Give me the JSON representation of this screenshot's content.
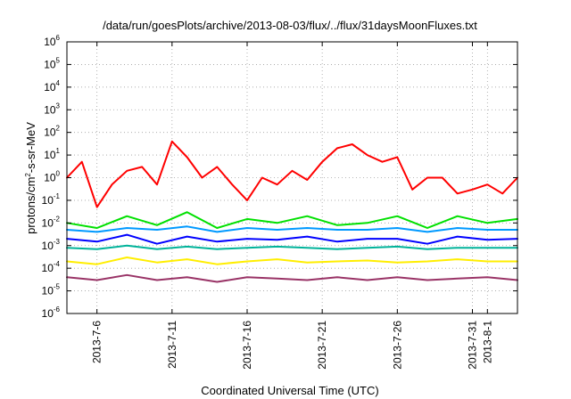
{
  "chart_data": {
    "type": "line",
    "title": "/data/run/goesPlots/archive/2013-08-03/flux/../flux/31daysMoonFluxes.txt",
    "xlabel": "Coordinated Universal Time (UTC)",
    "ylabel": {
      "base": "protons/cm",
      "sup": "2",
      "rest": "-s-sr-MeV"
    },
    "y_scale": "log",
    "ylim": [
      1e-06,
      1000000.0
    ],
    "xlim": [
      "2013-07-04",
      "2013-08-03"
    ],
    "grid": true,
    "y_ticks": [
      {
        "value": 1e-06,
        "base": "10",
        "exp": "-6"
      },
      {
        "value": 1e-05,
        "base": "10",
        "exp": "-5"
      },
      {
        "value": 0.0001,
        "base": "10",
        "exp": "-4"
      },
      {
        "value": 0.001,
        "base": "10",
        "exp": "-3"
      },
      {
        "value": 0.01,
        "base": "10",
        "exp": "-2"
      },
      {
        "value": 0.1,
        "base": "10",
        "exp": "-1"
      },
      {
        "value": 1.0,
        "base": "10",
        "exp": "0"
      },
      {
        "value": 10.0,
        "base": "10",
        "exp": "1"
      },
      {
        "value": 100.0,
        "base": "10",
        "exp": "2"
      },
      {
        "value": 1000.0,
        "base": "10",
        "exp": "3"
      },
      {
        "value": 10000.0,
        "base": "10",
        "exp": "4"
      },
      {
        "value": 100000.0,
        "base": "10",
        "exp": "5"
      },
      {
        "value": 1000000.0,
        "base": "10",
        "exp": "6"
      }
    ],
    "x_ticks": [
      {
        "date": "2013-07-06",
        "label": "2013-7-6"
      },
      {
        "date": "2013-07-11",
        "label": "2013-7-11"
      },
      {
        "date": "2013-07-16",
        "label": "2013-7-16"
      },
      {
        "date": "2013-07-21",
        "label": "2013-7-21"
      },
      {
        "date": "2013-07-26",
        "label": "2013-7-26"
      },
      {
        "date": "2013-07-31",
        "label": "2013-7-31"
      },
      {
        "date": "2013-08-01",
        "label": "2013-8-1"
      }
    ],
    "series": [
      {
        "color": "#ff0000",
        "x": [
          "2013-07-04",
          "2013-07-05",
          "2013-07-06",
          "2013-07-07",
          "2013-07-08",
          "2013-07-09",
          "2013-07-10",
          "2013-07-11",
          "2013-07-12",
          "2013-07-13",
          "2013-07-14",
          "2013-07-15",
          "2013-07-16",
          "2013-07-17",
          "2013-07-18",
          "2013-07-19",
          "2013-07-20",
          "2013-07-21",
          "2013-07-22",
          "2013-07-23",
          "2013-07-24",
          "2013-07-25",
          "2013-07-26",
          "2013-07-27",
          "2013-07-28",
          "2013-07-29",
          "2013-07-30",
          "2013-07-31",
          "2013-08-01",
          "2013-08-02",
          "2013-08-03"
        ],
        "y": [
          1.0,
          5.0,
          0.05,
          0.5,
          2.0,
          3.0,
          0.5,
          40.0,
          8.0,
          1.0,
          3.0,
          0.5,
          0.1,
          1.0,
          0.5,
          2.0,
          0.8,
          5.0,
          20.0,
          30.0,
          10.0,
          5.0,
          8.0,
          0.3,
          1.0,
          1.0,
          0.2,
          0.3,
          0.5,
          0.2,
          1.0
        ]
      },
      {
        "color": "#00e000",
        "x": [
          "2013-07-04",
          "2013-07-06",
          "2013-07-08",
          "2013-07-10",
          "2013-07-12",
          "2013-07-14",
          "2013-07-16",
          "2013-07-18",
          "2013-07-20",
          "2013-07-22",
          "2013-07-24",
          "2013-07-26",
          "2013-07-28",
          "2013-07-30",
          "2013-08-01",
          "2013-08-03"
        ],
        "y": [
          0.01,
          0.006,
          0.02,
          0.008,
          0.03,
          0.006,
          0.015,
          0.01,
          0.02,
          0.008,
          0.01,
          0.02,
          0.006,
          0.02,
          0.01,
          0.015
        ]
      },
      {
        "color": "#0099ff",
        "x": [
          "2013-07-04",
          "2013-07-06",
          "2013-07-08",
          "2013-07-10",
          "2013-07-12",
          "2013-07-14",
          "2013-07-16",
          "2013-07-18",
          "2013-07-20",
          "2013-07-22",
          "2013-07-24",
          "2013-07-26",
          "2013-07-28",
          "2013-07-30",
          "2013-08-01",
          "2013-08-03"
        ],
        "y": [
          0.005,
          0.004,
          0.006,
          0.005,
          0.007,
          0.004,
          0.006,
          0.005,
          0.006,
          0.005,
          0.005,
          0.006,
          0.004,
          0.006,
          0.005,
          0.005
        ]
      },
      {
        "color": "#0000ff",
        "x": [
          "2013-07-04",
          "2013-07-06",
          "2013-07-08",
          "2013-07-10",
          "2013-07-12",
          "2013-07-14",
          "2013-07-16",
          "2013-07-18",
          "2013-07-20",
          "2013-07-22",
          "2013-07-24",
          "2013-07-26",
          "2013-07-28",
          "2013-07-30",
          "2013-08-01",
          "2013-08-03"
        ],
        "y": [
          0.002,
          0.0015,
          0.003,
          0.0012,
          0.0025,
          0.0015,
          0.002,
          0.0018,
          0.0025,
          0.0015,
          0.002,
          0.002,
          0.0012,
          0.0025,
          0.0018,
          0.002
        ]
      },
      {
        "color": "#00b39a",
        "x": [
          "2013-07-04",
          "2013-07-06",
          "2013-07-08",
          "2013-07-10",
          "2013-07-12",
          "2013-07-14",
          "2013-07-16",
          "2013-07-18",
          "2013-07-20",
          "2013-07-22",
          "2013-07-24",
          "2013-07-26",
          "2013-07-28",
          "2013-07-30",
          "2013-08-01",
          "2013-08-03"
        ],
        "y": [
          0.0008,
          0.0007,
          0.001,
          0.0007,
          0.0009,
          0.0007,
          0.0008,
          0.0009,
          0.0008,
          0.0007,
          0.0008,
          0.0009,
          0.0007,
          0.0008,
          0.0008,
          0.0008
        ]
      },
      {
        "color": "#ffee00",
        "x": [
          "2013-07-04",
          "2013-07-06",
          "2013-07-08",
          "2013-07-10",
          "2013-07-12",
          "2013-07-14",
          "2013-07-16",
          "2013-07-18",
          "2013-07-20",
          "2013-07-22",
          "2013-07-24",
          "2013-07-26",
          "2013-07-28",
          "2013-07-30",
          "2013-08-01",
          "2013-08-03"
        ],
        "y": [
          0.0002,
          0.00015,
          0.0003,
          0.00018,
          0.00025,
          0.00015,
          0.0002,
          0.00025,
          0.00018,
          0.0002,
          0.00022,
          0.00018,
          0.0002,
          0.00025,
          0.0002,
          0.0002
        ]
      },
      {
        "color": "#993366",
        "x": [
          "2013-07-04",
          "2013-07-06",
          "2013-07-08",
          "2013-07-10",
          "2013-07-12",
          "2013-07-14",
          "2013-07-16",
          "2013-07-18",
          "2013-07-20",
          "2013-07-22",
          "2013-07-24",
          "2013-07-26",
          "2013-07-28",
          "2013-07-30",
          "2013-08-01",
          "2013-08-03"
        ],
        "y": [
          4e-05,
          3e-05,
          5e-05,
          3e-05,
          4e-05,
          2.5e-05,
          4e-05,
          3.5e-05,
          3e-05,
          4e-05,
          3e-05,
          4e-05,
          3e-05,
          3.5e-05,
          4e-05,
          3e-05
        ]
      }
    ]
  }
}
